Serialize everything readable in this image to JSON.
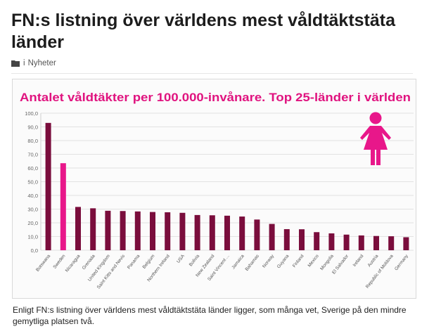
{
  "article": {
    "title": "FN:s listning över världens mest våldtäktstäta länder",
    "category_prefix": "i",
    "category": "Nyheter",
    "caption": "Enligt FN:s listning över världens mest våldtäktstäta länder ligger, som många vet, Sverige på den mindre gemytliga platsen två."
  },
  "icons": {
    "category": "folder-icon",
    "chart_symbol": "female-symbol-icon"
  },
  "colors": {
    "bar": "#7a0d3c",
    "highlight": "#e8178a",
    "title": "#e0137f"
  },
  "chart_data": {
    "type": "bar",
    "title": "Antalet våldtäkter per 100.000-invånare. Top 25-länder i världen",
    "xlabel": "",
    "ylabel": "",
    "ylim": [
      0,
      100
    ],
    "yticks": [
      "0,0",
      "10,0",
      "20,0",
      "30,0",
      "40,0",
      "50,0",
      "60,0",
      "70,0",
      "80,0",
      "90,0",
      "100,0"
    ],
    "grid": true,
    "categories": [
      "Botswana",
      "Sweden",
      "Nicaragua",
      "Grenada",
      "United Kingdom",
      "Saint Kitts and Nevis",
      "Panama",
      "Belgium",
      "Northern Ireland",
      "USA",
      "Bolivia",
      "New Zealand",
      "Saint Vincent ...",
      "Jamaica",
      "Bahamas",
      "Norway",
      "Guyana",
      "Finland",
      "Mexico",
      "Mongolia",
      "El Salvador",
      "Ireland",
      "Austria",
      "Republic of Moldova",
      "Germany"
    ],
    "values": [
      92.9,
      63.5,
      31.6,
      30.6,
      28.8,
      28.6,
      28.3,
      27.9,
      27.7,
      27.3,
      25.7,
      25.5,
      25.2,
      24.6,
      22.4,
      19.2,
      15.4,
      15.3,
      13.2,
      12.3,
      11.4,
      10.8,
      10.4,
      10.2,
      9.5
    ],
    "highlight_index": 1
  }
}
